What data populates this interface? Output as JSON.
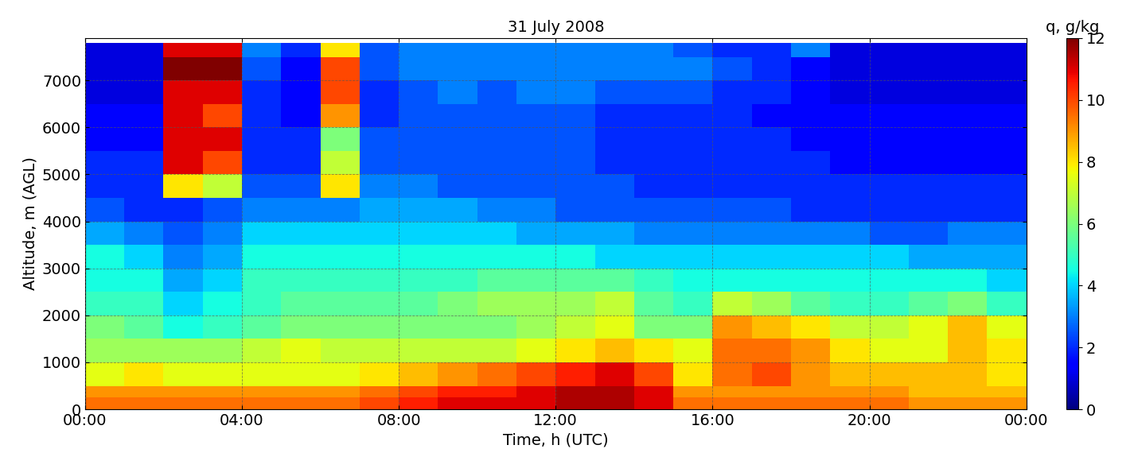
{
  "chart_data": {
    "type": "heatmap",
    "title": "31 July 2008",
    "x_label": "Time, h (UTC)",
    "y_label": "Altitude, m (AGL)",
    "xlim": [
      0,
      24
    ],
    "xticks": [
      {
        "value": 0,
        "label": "00:00"
      },
      {
        "value": 4,
        "label": "04:00"
      },
      {
        "value": 8,
        "label": "08:00"
      },
      {
        "value": 12,
        "label": "12:00"
      },
      {
        "value": 16,
        "label": "16:00"
      },
      {
        "value": 20,
        "label": "20:00"
      },
      {
        "value": 24,
        "label": "00:00"
      }
    ],
    "ylim": [
      0,
      7900
    ],
    "yticks": [
      0,
      1000,
      2000,
      3000,
      4000,
      5000,
      6000,
      7000
    ],
    "grid": true,
    "time_edges": [
      0,
      1,
      2,
      3,
      4,
      5,
      6,
      7,
      8,
      9,
      10,
      11,
      12,
      13,
      14,
      15,
      16,
      17,
      18,
      19,
      20,
      21,
      22,
      23,
      24
    ],
    "altitude_edges": [
      0,
      250,
      500,
      1000,
      1500,
      2000,
      2500,
      3000,
      3500,
      4000,
      4500,
      5000,
      5500,
      6000,
      6500,
      7000,
      7500,
      7800
    ],
    "cells": [
      [
        9.5,
        9.5,
        9.5,
        9.5,
        9.5,
        9.5,
        9.5,
        10,
        10.5,
        11,
        11,
        11,
        11.5,
        11.5,
        11,
        9.5,
        9.5,
        9.5,
        9.5,
        9.5,
        9.5,
        9,
        9,
        9
      ],
      [
        9,
        9,
        9,
        9,
        9,
        9,
        9,
        9.5,
        10,
        10.5,
        10.5,
        11,
        11.5,
        11.5,
        11,
        9,
        9,
        9,
        9,
        9,
        9,
        8.5,
        8.5,
        8.5
      ],
      [
        7.5,
        8,
        7.5,
        7.5,
        7.5,
        7.5,
        7.5,
        8,
        8.5,
        9,
        9.5,
        10,
        10.5,
        11,
        10,
        8,
        9.5,
        10,
        9,
        8.5,
        8.5,
        8.5,
        8.5,
        8
      ],
      [
        6.5,
        6.5,
        6.5,
        6.5,
        7,
        7.5,
        7,
        7,
        7,
        7,
        7,
        7.5,
        8,
        8.5,
        8,
        7.5,
        9.5,
        9.5,
        9,
        8,
        7.5,
        7.5,
        8.5,
        8
      ],
      [
        6,
        5.5,
        4.5,
        5,
        5.5,
        6,
        6,
        6,
        6,
        6,
        6,
        6.5,
        7,
        7.5,
        6,
        6,
        9,
        8.5,
        8,
        7,
        7,
        7.5,
        8.5,
        7.5
      ],
      [
        5,
        5,
        4,
        4.5,
        5,
        5.5,
        5.5,
        5.5,
        5.5,
        6,
        6.5,
        6.5,
        6.5,
        7,
        5.5,
        5,
        7,
        6.5,
        5.5,
        5,
        5,
        5.5,
        6,
        5
      ],
      [
        4.5,
        4.5,
        3.5,
        4,
        5,
        5,
        5,
        5,
        5,
        5,
        5.5,
        5.5,
        5.5,
        5.5,
        5,
        4.5,
        4.5,
        4.5,
        4.5,
        4.5,
        4.5,
        4.5,
        4.5,
        4
      ],
      [
        4.5,
        4,
        3,
        3.5,
        4.5,
        4.5,
        4.5,
        4.5,
        4.5,
        4.5,
        4.5,
        4.5,
        4.5,
        4,
        4,
        4,
        4,
        4,
        4,
        4,
        4,
        3.5,
        3.5,
        3.5
      ],
      [
        3.5,
        3,
        2.5,
        3,
        4,
        4,
        4,
        4,
        4,
        4,
        4,
        3.5,
        3.5,
        3.5,
        3,
        3,
        3,
        3,
        3,
        3,
        2.5,
        2.5,
        3,
        3
      ],
      [
        2.5,
        2,
        2,
        2.5,
        3,
        3,
        3,
        3.5,
        3.5,
        3.5,
        3,
        3,
        2.5,
        2.5,
        2.5,
        2.5,
        2.5,
        2.5,
        2,
        2,
        2,
        2,
        2,
        2
      ],
      [
        2,
        2,
        8,
        7,
        2.5,
        2.5,
        8,
        3,
        3,
        2.5,
        2.5,
        2.5,
        2.5,
        2.5,
        2,
        2,
        2,
        2,
        2,
        2,
        2,
        2,
        2,
        2
      ],
      [
        2,
        2,
        11,
        10,
        2,
        2,
        7,
        2.5,
        2.5,
        2.5,
        2.5,
        2.5,
        2.5,
        2,
        2,
        2,
        2,
        2,
        2,
        1.5,
        1.5,
        1.5,
        1.5,
        1.5
      ],
      [
        1.5,
        1.5,
        11,
        11,
        2,
        2,
        6,
        2.5,
        2.5,
        2.5,
        2.5,
        2.5,
        2.5,
        2,
        2,
        2,
        2,
        2,
        1.5,
        1.5,
        1.5,
        1.5,
        1.5,
        1.5
      ],
      [
        1.5,
        1.5,
        11,
        10,
        2,
        1.5,
        9,
        2,
        2.5,
        2.5,
        2.5,
        2.5,
        2.5,
        2,
        2,
        2,
        2,
        1.5,
        1.5,
        1.5,
        1.5,
        1.5,
        1.5,
        1.5
      ],
      [
        1,
        1,
        11,
        11,
        2,
        1.5,
        10,
        2,
        2.5,
        3,
        2.5,
        3,
        3,
        2.5,
        2.5,
        2.5,
        2,
        2,
        1.5,
        1,
        1,
        1,
        1,
        1
      ],
      [
        1,
        1,
        12,
        12,
        2.5,
        1.5,
        10,
        2.5,
        3,
        3,
        3,
        3,
        3,
        3,
        3,
        3,
        2.5,
        2,
        1.5,
        1,
        1,
        1,
        1,
        1
      ],
      [
        1,
        1,
        11,
        11,
        3,
        2,
        8,
        2.5,
        3,
        3,
        3,
        3,
        3,
        3,
        3,
        2.5,
        2,
        2,
        3,
        1,
        1,
        1,
        1,
        1
      ]
    ],
    "colorbar": {
      "label": "q, g/kg",
      "range": [
        0,
        12
      ],
      "ticks": [
        0,
        2,
        4,
        6,
        8,
        10,
        12
      ]
    }
  }
}
